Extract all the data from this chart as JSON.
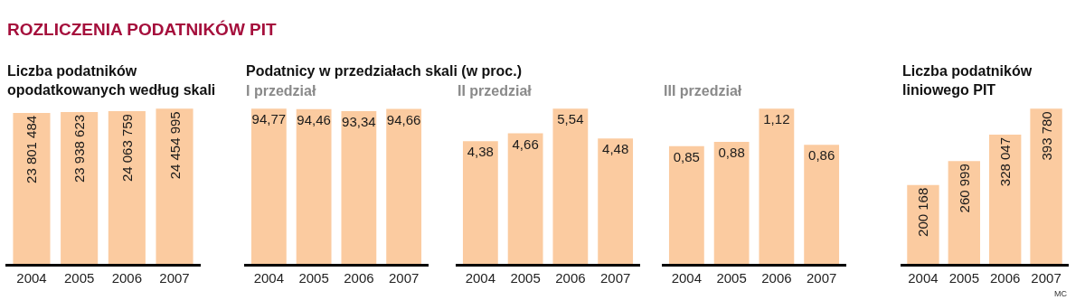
{
  "chart_data": [
    {
      "type": "bar",
      "title": "Liczba podatników opodatkowanych według skali",
      "categories": [
        "2004",
        "2005",
        "2006",
        "2007"
      ],
      "values": [
        23801484,
        23938623,
        24063759,
        24454995
      ],
      "color": "#fbcba0",
      "data_labels": true,
      "annotations": [
        "ROZLICZENIA PODATNIKÓW PIT"
      ]
    },
    {
      "type": "bar",
      "title": "Podatnicy w przedziałach skali (w proc.)",
      "subtitle": "I przedział",
      "categories": [
        "2004",
        "2005",
        "2006",
        "2007"
      ],
      "values": [
        94.77,
        94.46,
        93.34,
        94.66
      ],
      "value_labels": [
        "94,77",
        "94,46",
        "93,34",
        "94,66"
      ],
      "color": "#fbcba0"
    },
    {
      "type": "bar",
      "subtitle": "II przedział",
      "categories": [
        "2004",
        "2005",
        "2006",
        "2007"
      ],
      "values": [
        4.38,
        4.66,
        5.54,
        4.48
      ],
      "value_labels": [
        "4,38",
        "4,66",
        "5,54",
        "4,48"
      ],
      "color": "#fbcba0"
    },
    {
      "type": "bar",
      "subtitle": "III przedział",
      "categories": [
        "2004",
        "2005",
        "2006",
        "2007"
      ],
      "values": [
        0.85,
        0.88,
        1.12,
        0.86
      ],
      "value_labels": [
        "0,85",
        "0,88",
        "1,12",
        "0,86"
      ],
      "color": "#fbcba0"
    },
    {
      "type": "bar",
      "title": "Liczba podatników liniowego PIT",
      "categories": [
        "2004",
        "2005",
        "2006",
        "2007"
      ],
      "values": [
        200168,
        260999,
        328047,
        393780
      ],
      "color": "#fbcba0",
      "data_labels": true,
      "annotations": [
        "MC"
      ]
    }
  ]
}
